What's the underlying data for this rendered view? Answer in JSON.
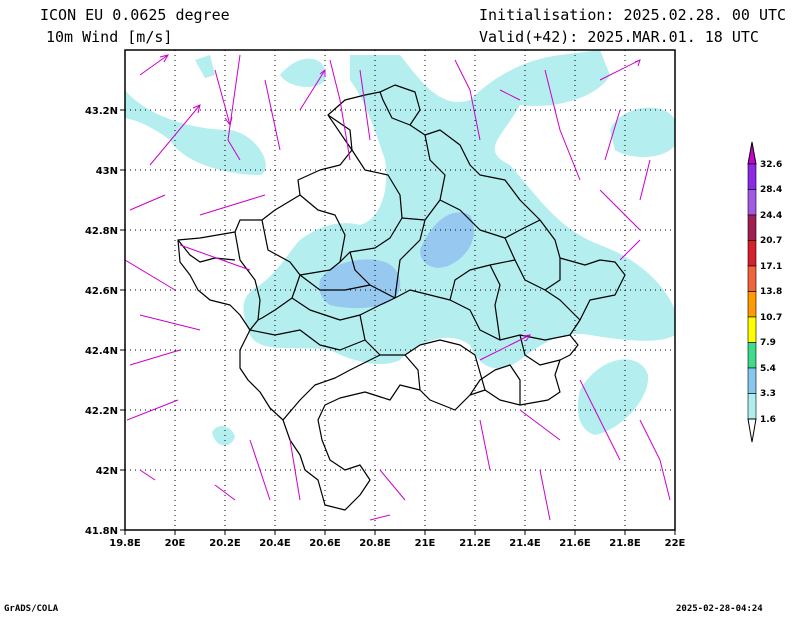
{
  "header": {
    "title_line1": "ICON EU 0.0625 degree",
    "title_line2": "10m Wind [m/s]",
    "init": "Initialisation: 2025.02.28. 00 UTC",
    "valid": "Valid(+42): 2025.MAR.01. 18 UTC"
  },
  "axes": {
    "x_ticks": [
      "19.8E",
      "20E",
      "20.2E",
      "20.4E",
      "20.6E",
      "20.8E",
      "21E",
      "21.2E",
      "21.4E",
      "21.6E",
      "21.8E",
      "22E"
    ],
    "x_values": [
      19.8,
      20.0,
      20.2,
      20.4,
      20.6,
      20.8,
      21.0,
      21.2,
      21.4,
      21.6,
      21.8,
      22.0
    ],
    "y_ticks": [
      "41.8N",
      "42N",
      "42.2N",
      "42.4N",
      "42.6N",
      "42.8N",
      "43N",
      "43.2N"
    ],
    "y_values": [
      41.8,
      42.0,
      42.2,
      42.4,
      42.6,
      42.8,
      43.0,
      43.2
    ],
    "lon_range": [
      19.8,
      22.0
    ],
    "lat_range": [
      41.8,
      43.38
    ],
    "grid": true
  },
  "colorbar": {
    "levels": [
      "1.6",
      "3.3",
      "5.4",
      "7.9",
      "10.7",
      "13.8",
      "17.1",
      "20.7",
      "24.4",
      "28.4",
      "32.6"
    ],
    "colors": [
      "#aeeeee",
      "#86c8f0",
      "#3cdc8c",
      "#ffff00",
      "#ff9a00",
      "#f0643c",
      "#d8202a",
      "#a01e50",
      "#a05ae6",
      "#8c28e6",
      "#b400dc"
    ]
  },
  "footer": {
    "credit": "GrADS/COLA",
    "timestamp": "2025-02-28-04:24"
  }
}
